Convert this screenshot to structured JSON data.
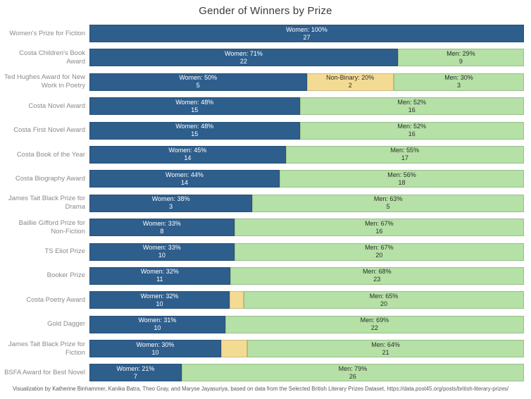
{
  "title": "Gender of Winners by Prize",
  "footer": "Visualization by Katherine Binhammer, Kanika Batra, Theo Gray, and Maryse Jayasuriya, based on data from the Selected British Literary Prizes Dataset, https://data.post45.org/posts/british-literary-prizes/",
  "chart_data": {
    "type": "bar",
    "orientation": "horizontal",
    "stacked": true,
    "title": "Gender of Winners by Prize",
    "xlabel": "",
    "ylabel": "",
    "xlim": [
      0,
      100
    ],
    "grid": false,
    "legend_position": "none",
    "groups": [
      "Women",
      "Non-Binary",
      "Men"
    ],
    "colors": {
      "Women": "#2E5E8C",
      "Non-Binary": "#F4DB94",
      "Men": "#B5E0A6"
    },
    "rows": [
      {
        "prize": "Women's Prize for Fiction",
        "segments": [
          {
            "group": "Women",
            "pct": 100,
            "count": 27,
            "label": "Women: 100%",
            "show_label": true
          }
        ]
      },
      {
        "prize": "Costa Children's Book Award",
        "segments": [
          {
            "group": "Women",
            "pct": 71,
            "count": 22,
            "label": "Women: 71%",
            "show_label": true
          },
          {
            "group": "Men",
            "pct": 29,
            "count": 9,
            "label": "Men: 29%",
            "show_label": true
          }
        ]
      },
      {
        "prize": "Ted Hughes Award for New\nWork in Poetry",
        "segments": [
          {
            "group": "Women",
            "pct": 50,
            "count": 5,
            "label": "Women: 50%",
            "show_label": true
          },
          {
            "group": "Non-Binary",
            "pct": 20,
            "count": 2,
            "label": "Non-Binary: 20%",
            "show_label": true
          },
          {
            "group": "Men",
            "pct": 30,
            "count": 3,
            "label": "Men: 30%",
            "show_label": true
          }
        ]
      },
      {
        "prize": "Costa Novel Award",
        "segments": [
          {
            "group": "Women",
            "pct": 48,
            "count": 15,
            "label": "Women: 48%",
            "show_label": true
          },
          {
            "group": "Men",
            "pct": 52,
            "count": 16,
            "label": "Men: 52%",
            "show_label": true
          }
        ]
      },
      {
        "prize": "Costa First Novel Award",
        "segments": [
          {
            "group": "Women",
            "pct": 48,
            "count": 15,
            "label": "Women: 48%",
            "show_label": true
          },
          {
            "group": "Men",
            "pct": 52,
            "count": 16,
            "label": "Men: 52%",
            "show_label": true
          }
        ]
      },
      {
        "prize": "Costa Book of the Year",
        "segments": [
          {
            "group": "Women",
            "pct": 45,
            "count": 14,
            "label": "Women: 45%",
            "show_label": true
          },
          {
            "group": "Men",
            "pct": 55,
            "count": 17,
            "label": "Men: 55%",
            "show_label": true
          }
        ]
      },
      {
        "prize": "Costa Biography Award",
        "segments": [
          {
            "group": "Women",
            "pct": 44,
            "count": 14,
            "label": "Women: 44%",
            "show_label": true
          },
          {
            "group": "Men",
            "pct": 56,
            "count": 18,
            "label": "Men: 56%",
            "show_label": true
          }
        ]
      },
      {
        "prize": "James Tait Black Prize for\nDrama",
        "segments": [
          {
            "group": "Women",
            "pct": 38,
            "count": 3,
            "label": "Women: 38%",
            "show_label": true
          },
          {
            "group": "Men",
            "pct": 63,
            "count": 5,
            "label": "Men: 63%",
            "show_label": true
          }
        ]
      },
      {
        "prize": "Baillie Gifford Prize for\nNon-Fiction",
        "segments": [
          {
            "group": "Women",
            "pct": 33,
            "count": 8,
            "label": "Women: 33%",
            "show_label": true
          },
          {
            "group": "Men",
            "pct": 67,
            "count": 16,
            "label": "Men: 67%",
            "show_label": true
          }
        ]
      },
      {
        "prize": "TS Eliot Prize",
        "segments": [
          {
            "group": "Women",
            "pct": 33,
            "count": 10,
            "label": "Women: 33%",
            "show_label": true
          },
          {
            "group": "Men",
            "pct": 67,
            "count": 20,
            "label": "Men: 67%",
            "show_label": true
          }
        ]
      },
      {
        "prize": "Booker Prize",
        "segments": [
          {
            "group": "Women",
            "pct": 32,
            "count": 11,
            "label": "Women: 32%",
            "show_label": true
          },
          {
            "group": "Men",
            "pct": 68,
            "count": 23,
            "label": "Men: 68%",
            "show_label": true
          }
        ]
      },
      {
        "prize": "Costa Poetry Award",
        "segments": [
          {
            "group": "Women",
            "pct": 32,
            "count": 10,
            "label": "Women: 32%",
            "show_label": true
          },
          {
            "group": "Non-Binary",
            "pct": 3,
            "count": 1,
            "label": "",
            "show_label": false
          },
          {
            "group": "Men",
            "pct": 65,
            "count": 20,
            "label": "Men: 65%",
            "show_label": true
          }
        ]
      },
      {
        "prize": "Gold Dagger",
        "segments": [
          {
            "group": "Women",
            "pct": 31,
            "count": 10,
            "label": "Women: 31%",
            "show_label": true
          },
          {
            "group": "Men",
            "pct": 69,
            "count": 22,
            "label": "Men: 69%",
            "show_label": true
          }
        ]
      },
      {
        "prize": "James Tait Black Prize for\nFiction",
        "segments": [
          {
            "group": "Women",
            "pct": 30,
            "count": 10,
            "label": "Women: 30%",
            "show_label": true
          },
          {
            "group": "Non-Binary",
            "pct": 6,
            "count": 2,
            "label": "",
            "show_label": false
          },
          {
            "group": "Men",
            "pct": 64,
            "count": 21,
            "label": "Men: 64%",
            "show_label": true
          }
        ]
      },
      {
        "prize": "BSFA Award for Best Novel",
        "segments": [
          {
            "group": "Women",
            "pct": 21,
            "count": 7,
            "label": "Women: 21%",
            "show_label": true
          },
          {
            "group": "Men",
            "pct": 79,
            "count": 26,
            "label": "Men: 79%",
            "show_label": true
          }
        ]
      }
    ]
  }
}
